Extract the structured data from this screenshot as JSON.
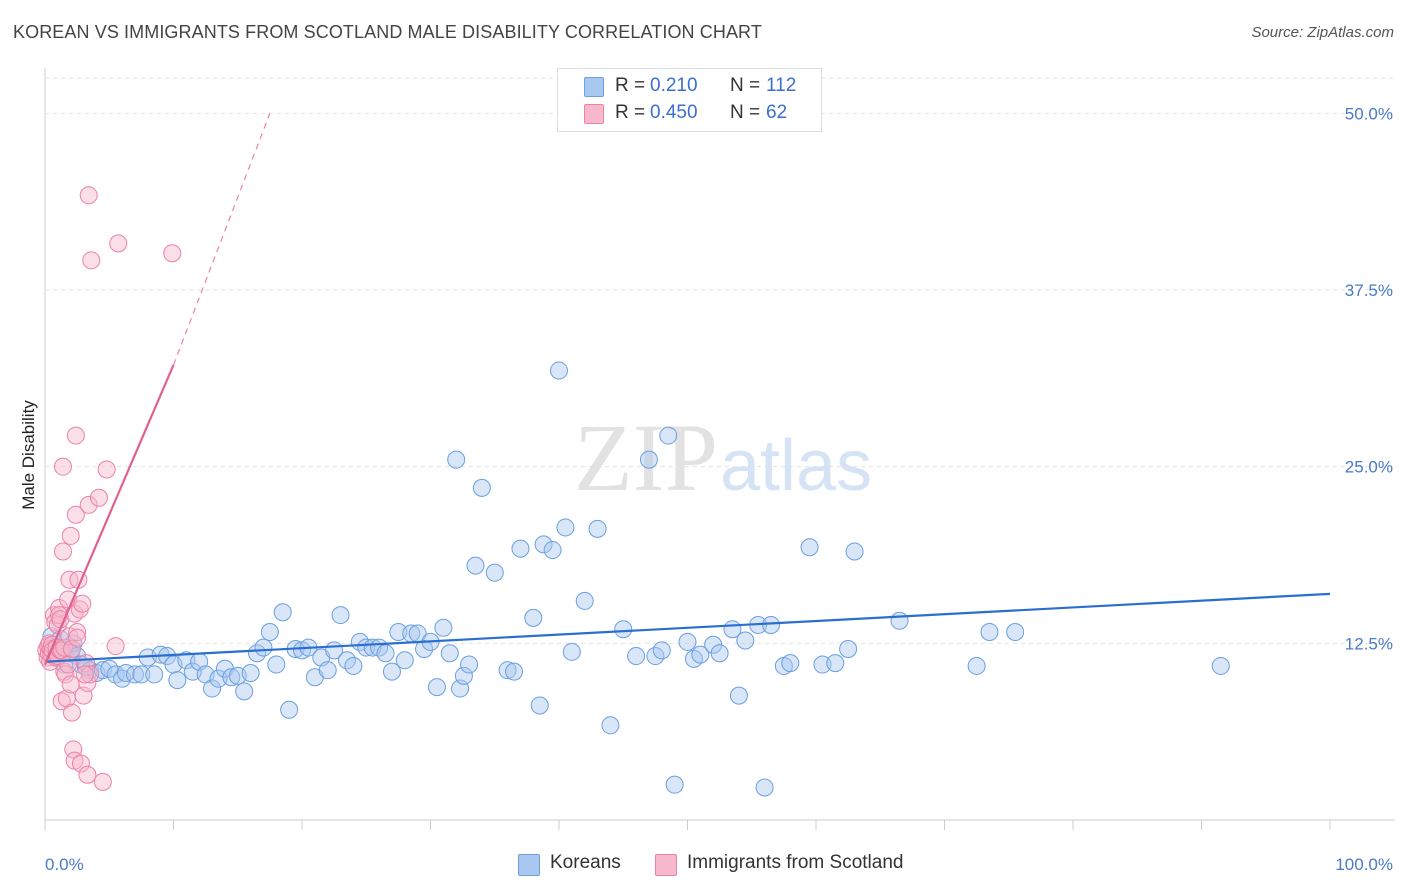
{
  "header": {
    "title": "KOREAN VS IMMIGRANTS FROM SCOTLAND MALE DISABILITY CORRELATION CHART",
    "source": "Source: ZipAtlas.com"
  },
  "colors": {
    "korean_fill": "#a9c8f0",
    "korean_stroke": "#6a9fe0",
    "korean_line": "#2a6fd0",
    "scotland_fill": "#f7b8cd",
    "scotland_stroke": "#ec82a6",
    "scotland_line": "#e0608e",
    "tick_label": "#4a7ac8",
    "grid": "#e3e3e3"
  },
  "legend": {
    "korean": {
      "r_label": "R =",
      "r_value": "0.210",
      "n_label": "N =",
      "n_value": "112"
    },
    "scotland": {
      "r_label": "R =",
      "r_value": "0.450",
      "n_label": "N =",
      "n_value": "62"
    }
  },
  "bottom_legend": {
    "korean": "Koreans",
    "scotland": "Immigrants from Scotland"
  },
  "watermark": {
    "zip": "ZIP",
    "atlas": "atlas"
  },
  "chart_data": {
    "type": "scatter",
    "title": "KOREAN VS IMMIGRANTS FROM SCOTLAND MALE DISABILITY CORRELATION CHART",
    "xlabel": "",
    "ylabel": "Male Disability",
    "xlim": [
      0,
      100
    ],
    "ylim": [
      0,
      52.5
    ],
    "x_tick_labels": [
      "0.0%",
      "100.0%"
    ],
    "y_ticks": [
      12.5,
      25.0,
      37.5,
      50.0
    ],
    "y_tick_labels": [
      "12.5%",
      "25.0%",
      "37.5%",
      "50.0%"
    ],
    "grid": "horizontal dashed",
    "legend_position": "top-center",
    "series": [
      {
        "name": "Koreans",
        "r": 0.21,
        "n": 112,
        "trend": {
          "x0": 0,
          "y0": 11.2,
          "x1": 100,
          "y1": 16.0
        },
        "points": [
          [
            0.5,
            13.0
          ],
          [
            0.8,
            12.0
          ],
          [
            1.0,
            11.5
          ],
          [
            1.2,
            12.8
          ],
          [
            1.5,
            11.0
          ],
          [
            1.8,
            12.2
          ],
          [
            2.0,
            11.8
          ],
          [
            2.2,
            12.5
          ],
          [
            2.5,
            11.6
          ],
          [
            2.8,
            11.0
          ],
          [
            3.2,
            10.8
          ],
          [
            3.5,
            10.6
          ],
          [
            4.0,
            10.4
          ],
          [
            4.5,
            10.6
          ],
          [
            5.0,
            10.7
          ],
          [
            5.5,
            10.3
          ],
          [
            6.0,
            10.0
          ],
          [
            6.3,
            10.4
          ],
          [
            7.0,
            10.3
          ],
          [
            7.5,
            10.3
          ],
          [
            8.0,
            11.5
          ],
          [
            8.5,
            10.3
          ],
          [
            9.0,
            11.7
          ],
          [
            9.5,
            11.6
          ],
          [
            10.0,
            11.0
          ],
          [
            10.3,
            9.9
          ],
          [
            11.0,
            11.3
          ],
          [
            11.5,
            10.5
          ],
          [
            12.0,
            11.2
          ],
          [
            12.5,
            10.3
          ],
          [
            13.0,
            9.3
          ],
          [
            13.5,
            10.0
          ],
          [
            14.0,
            10.7
          ],
          [
            14.5,
            10.1
          ],
          [
            15.0,
            10.2
          ],
          [
            15.5,
            9.1
          ],
          [
            16.0,
            10.4
          ],
          [
            16.5,
            11.8
          ],
          [
            17.0,
            12.2
          ],
          [
            17.5,
            13.3
          ],
          [
            18.0,
            11.0
          ],
          [
            18.5,
            14.7
          ],
          [
            19.0,
            7.8
          ],
          [
            19.5,
            12.1
          ],
          [
            20.0,
            12.0
          ],
          [
            20.5,
            12.2
          ],
          [
            21.0,
            10.1
          ],
          [
            21.5,
            11.5
          ],
          [
            22.0,
            10.6
          ],
          [
            22.5,
            12.0
          ],
          [
            23.0,
            14.5
          ],
          [
            23.5,
            11.3
          ],
          [
            24.0,
            10.9
          ],
          [
            24.5,
            12.6
          ],
          [
            25.0,
            12.2
          ],
          [
            25.5,
            12.2
          ],
          [
            26.0,
            12.2
          ],
          [
            26.5,
            11.8
          ],
          [
            27.0,
            10.5
          ],
          [
            27.5,
            13.3
          ],
          [
            28.0,
            11.3
          ],
          [
            28.5,
            13.2
          ],
          [
            29.0,
            13.2
          ],
          [
            29.5,
            12.1
          ],
          [
            30.0,
            12.6
          ],
          [
            30.5,
            9.4
          ],
          [
            31.0,
            13.6
          ],
          [
            31.5,
            11.8
          ],
          [
            32.0,
            25.5
          ],
          [
            32.3,
            9.3
          ],
          [
            32.6,
            10.2
          ],
          [
            33.0,
            11.0
          ],
          [
            33.5,
            18.0
          ],
          [
            34.0,
            23.5
          ],
          [
            35.0,
            17.5
          ],
          [
            36.0,
            10.6
          ],
          [
            36.5,
            10.5
          ],
          [
            37.0,
            19.2
          ],
          [
            38.0,
            14.3
          ],
          [
            38.5,
            8.1
          ],
          [
            38.8,
            19.5
          ],
          [
            39.5,
            19.1
          ],
          [
            40.0,
            31.8
          ],
          [
            40.5,
            20.7
          ],
          [
            41.0,
            11.9
          ],
          [
            42.0,
            15.5
          ],
          [
            43.0,
            20.6
          ],
          [
            44.0,
            6.7
          ],
          [
            45.0,
            13.5
          ],
          [
            46.0,
            11.6
          ],
          [
            47.0,
            25.5
          ],
          [
            47.5,
            11.6
          ],
          [
            48.0,
            12.0
          ],
          [
            48.5,
            27.2
          ],
          [
            49.0,
            2.5
          ],
          [
            50.0,
            12.6
          ],
          [
            50.5,
            11.4
          ],
          [
            51.0,
            11.7
          ],
          [
            52.0,
            12.4
          ],
          [
            52.5,
            11.8
          ],
          [
            53.5,
            13.5
          ],
          [
            54.0,
            8.8
          ],
          [
            54.5,
            12.7
          ],
          [
            55.5,
            13.8
          ],
          [
            56.0,
            2.3
          ],
          [
            56.5,
            13.8
          ],
          [
            57.5,
            10.9
          ],
          [
            58.0,
            11.1
          ],
          [
            59.5,
            19.3
          ],
          [
            60.5,
            11.0
          ],
          [
            61.5,
            11.1
          ],
          [
            62.5,
            12.1
          ],
          [
            63.0,
            19.0
          ],
          [
            66.5,
            14.1
          ],
          [
            72.5,
            10.9
          ],
          [
            73.5,
            13.3
          ],
          [
            75.5,
            13.3
          ],
          [
            91.5,
            10.9
          ]
        ]
      },
      {
        "name": "Immigrants from Scotland",
        "r": 0.45,
        "n": 62,
        "trend": {
          "x0": 0,
          "y0": 11.0,
          "x1": 10.0,
          "y1": 32.2
        },
        "trend_extension": {
          "x0": 10.0,
          "y0": 32.2,
          "x1": 17.5,
          "y1": 50.0
        },
        "points": [
          [
            0.1,
            12.0
          ],
          [
            0.2,
            11.5
          ],
          [
            0.25,
            12.3
          ],
          [
            0.3,
            11.8
          ],
          [
            0.35,
            12.5
          ],
          [
            0.4,
            11.2
          ],
          [
            0.45,
            12.1
          ],
          [
            0.5,
            11.7
          ],
          [
            0.55,
            12.4
          ],
          [
            0.6,
            12.0
          ],
          [
            0.7,
            14.5
          ],
          [
            0.8,
            14.0
          ],
          [
            0.85,
            11.5
          ],
          [
            0.9,
            12.2
          ],
          [
            1.0,
            11.6
          ],
          [
            1.0,
            13.8
          ],
          [
            1.1,
            15.0
          ],
          [
            1.1,
            14.5
          ],
          [
            1.2,
            14.2
          ],
          [
            1.2,
            12.0
          ],
          [
            1.3,
            12.0
          ],
          [
            1.3,
            8.4
          ],
          [
            1.4,
            19.0
          ],
          [
            1.4,
            25.0
          ],
          [
            1.5,
            10.5
          ],
          [
            1.5,
            12.2
          ],
          [
            1.6,
            10.3
          ],
          [
            1.7,
            8.6
          ],
          [
            1.8,
            11.0
          ],
          [
            1.8,
            15.6
          ],
          [
            1.9,
            13.0
          ],
          [
            1.9,
            17.0
          ],
          [
            2.0,
            20.1
          ],
          [
            2.0,
            9.6
          ],
          [
            2.1,
            12.1
          ],
          [
            2.1,
            7.6
          ],
          [
            2.2,
            5.0
          ],
          [
            2.3,
            4.2
          ],
          [
            2.3,
            14.6
          ],
          [
            2.4,
            27.2
          ],
          [
            2.4,
            21.6
          ],
          [
            2.5,
            13.3
          ],
          [
            2.5,
            12.9
          ],
          [
            2.6,
            17.0
          ],
          [
            2.7,
            14.9
          ],
          [
            2.8,
            4.0
          ],
          [
            2.9,
            15.3
          ],
          [
            3.0,
            8.8
          ],
          [
            3.2,
            11.1
          ],
          [
            3.3,
            9.7
          ],
          [
            3.3,
            3.2
          ],
          [
            3.4,
            22.3
          ],
          [
            3.4,
            44.2
          ],
          [
            3.5,
            10.3
          ],
          [
            3.6,
            39.6
          ],
          [
            4.2,
            22.8
          ],
          [
            4.5,
            2.7
          ],
          [
            4.8,
            24.8
          ],
          [
            5.5,
            12.3
          ],
          [
            5.7,
            40.8
          ],
          [
            9.9,
            40.1
          ],
          [
            3.1,
            10.3
          ]
        ]
      }
    ]
  }
}
